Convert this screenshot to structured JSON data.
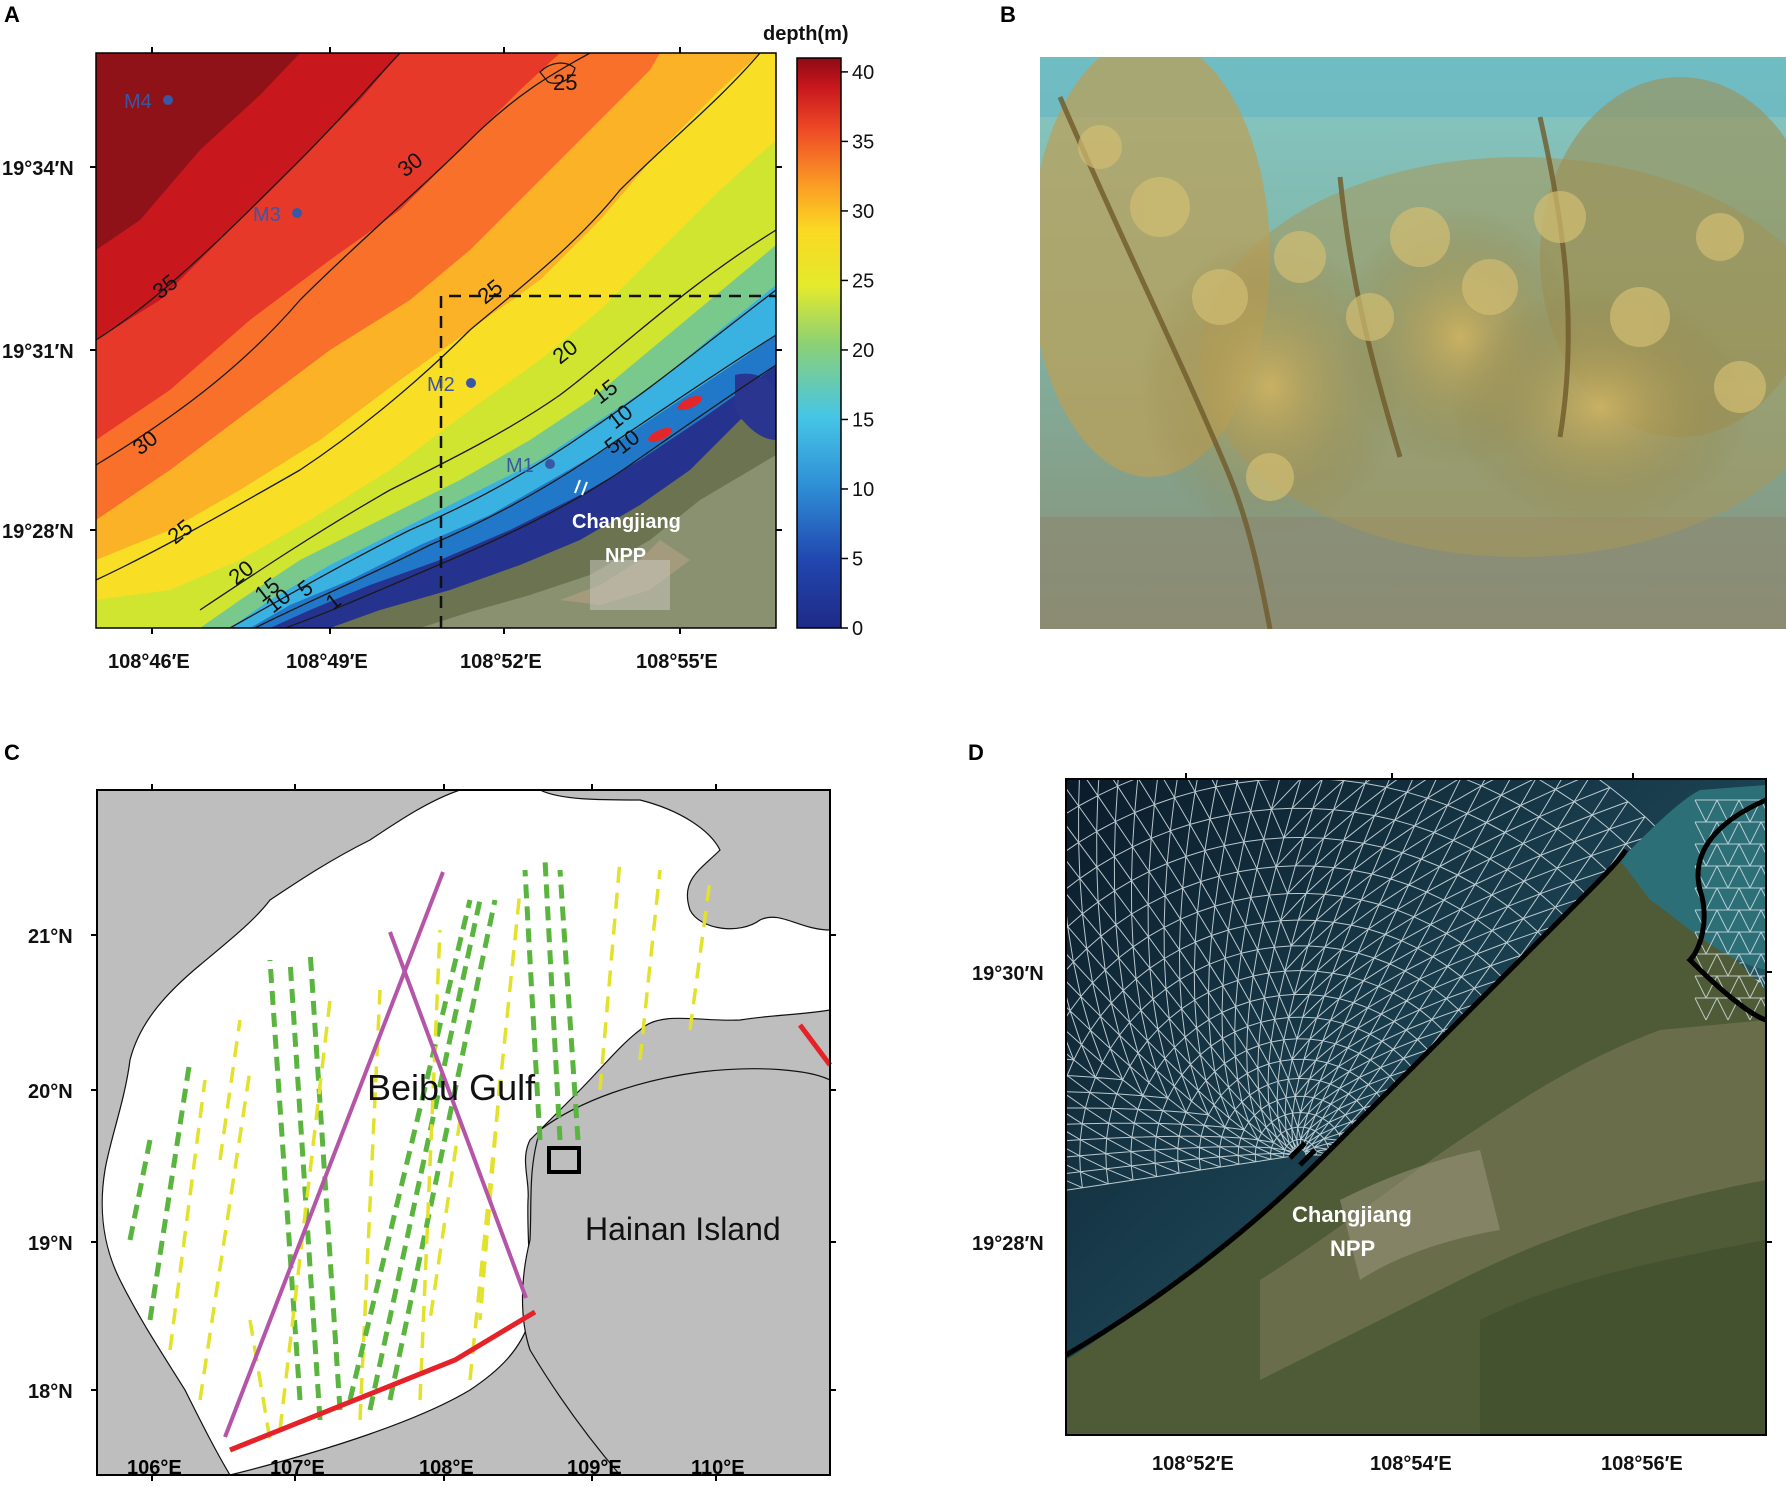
{
  "panel_labels": {
    "a": "A",
    "b": "B",
    "c": "C",
    "d": "D"
  },
  "panel_a": {
    "colorbar": {
      "title": "depth(m)",
      "ticks": [
        "40",
        "35",
        "30",
        "25",
        "20",
        "15",
        "10",
        "5",
        "0"
      ],
      "range": [
        0,
        41
      ],
      "colors": [
        "#2b2d8f",
        "#1f5fbd",
        "#2aa6df",
        "#7ec98a",
        "#d6e83c",
        "#fbe222",
        "#fca424",
        "#f0582a",
        "#c8141e",
        "#8e0b14"
      ]
    },
    "y_ticks": [
      "19°34′N",
      "19°31′N",
      "19°28′N"
    ],
    "x_ticks": [
      "108°46′E",
      "108°49′E",
      "108°52′E",
      "108°55′E"
    ],
    "contour_labels": [
      "25",
      "30",
      "35",
      "25",
      "30",
      "25",
      "20",
      "20",
      "15",
      "15",
      "10",
      "5",
      "1",
      "10",
      "5",
      "10"
    ],
    "stations": [
      "M4",
      "M3",
      "M2",
      "M1"
    ],
    "site_label_1": "Changjiang",
    "site_label_2": "NPP",
    "colors": {
      "station": "#3a57a5",
      "patch": "#e3262a",
      "site_text": "#ffffff"
    }
  },
  "panel_b": {
    "description_free": true,
    "colors": {
      "water": "#6fb9b6",
      "weed": "#b79e4e"
    }
  },
  "panel_c": {
    "y_ticks": [
      "21°N",
      "20°N",
      "19°N",
      "18°N"
    ],
    "x_ticks": [
      "106°E",
      "107°E",
      "108°E",
      "109°E",
      "110°E"
    ],
    "gulf_label": "Beibu Gulf",
    "island_label": "Hainan Island",
    "colors": {
      "land": "#bebebe",
      "sea": "#ffffff",
      "track_green": "#5ab53e",
      "track_yellow": "#e2e22c",
      "transect": "#b455a8",
      "boundary": "#e42228"
    }
  },
  "panel_d": {
    "y_ticks": [
      "19°30′N",
      "19°28′N"
    ],
    "x_ticks": [
      "108°52′E",
      "108°54′E",
      "108°56′E"
    ],
    "site_label_1": "Changjiang",
    "site_label_2": "NPP",
    "colors": {
      "sea_dark": "#0c1f2b",
      "sea_light": "#3d8c86",
      "mesh": "#d8e4e8",
      "land": "#4f5a36"
    }
  }
}
